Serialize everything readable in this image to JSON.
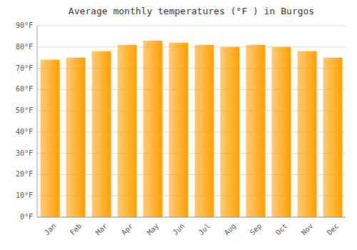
{
  "chart_data": {
    "type": "bar",
    "title": "Average monthly temperatures (°F ) in Burgos",
    "categories": [
      "Jan",
      "Feb",
      "Mar",
      "Apr",
      "May",
      "Jun",
      "Jul",
      "Aug",
      "Sep",
      "Oct",
      "Nov",
      "Dec"
    ],
    "values": [
      74,
      75,
      78,
      81,
      83,
      82,
      81,
      80,
      81,
      80,
      78,
      75
    ],
    "color": "#FFA000",
    "ylim": [
      0,
      90
    ],
    "yticks": [
      {
        "value": 0,
        "label": "0°F"
      },
      {
        "value": 10,
        "label": "10°F"
      },
      {
        "value": 20,
        "label": "20°F"
      },
      {
        "value": 30,
        "label": "30°F"
      },
      {
        "value": 40,
        "label": "40°F"
      },
      {
        "value": 50,
        "label": "50°F"
      },
      {
        "value": 60,
        "label": "60°F"
      },
      {
        "value": 70,
        "label": "70°F"
      },
      {
        "value": 80,
        "label": "80°F"
      },
      {
        "value": 90,
        "label": "90°F"
      }
    ],
    "grid": true
  }
}
